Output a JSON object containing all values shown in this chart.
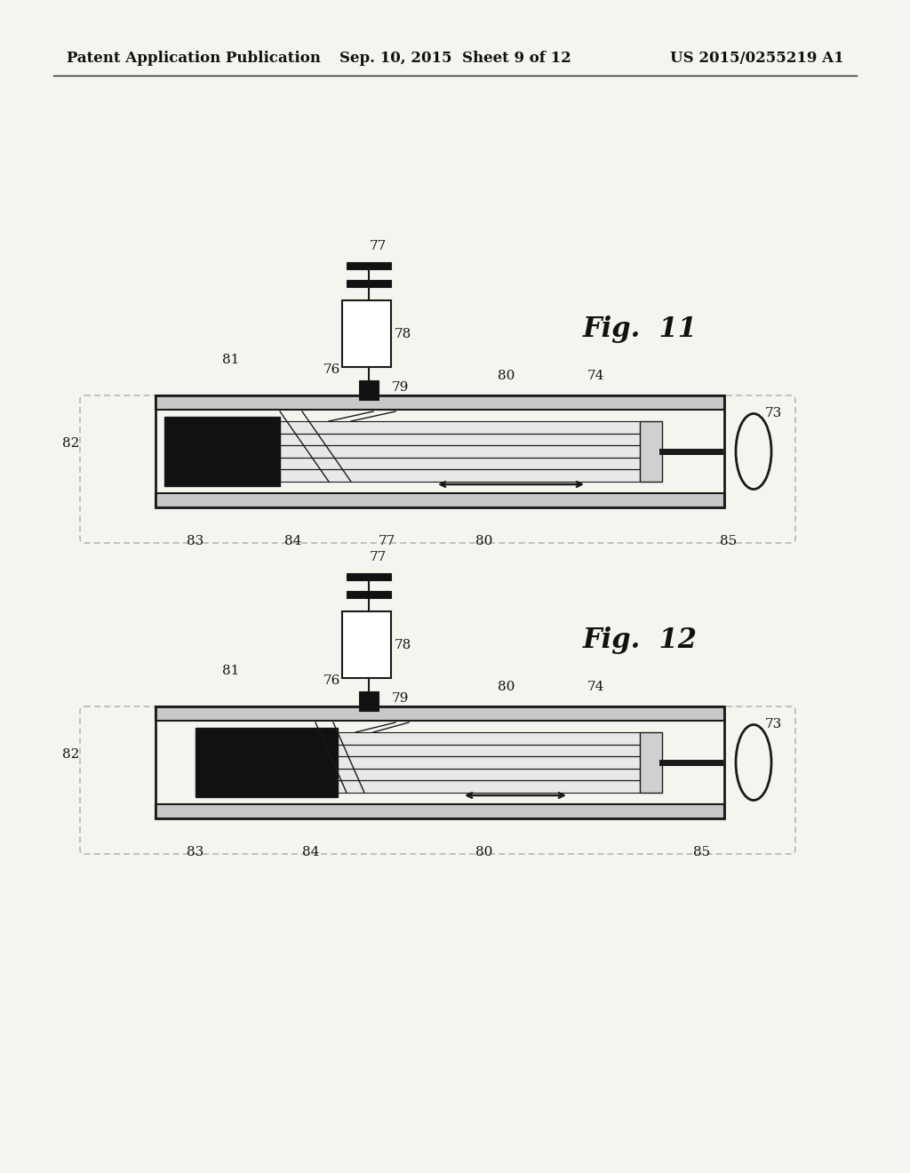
{
  "bg_color": "#f5f5f0",
  "header_left": "Patent Application Publication",
  "header_center": "Sep. 10, 2015  Sheet 9 of 12",
  "header_right": "US 2015/0255219 A1",
  "fig11_label": "Fig.  11",
  "fig12_label": "Fig.  12",
  "line_color": "#1a1a1a",
  "dark_fill": "#111111",
  "gray_fill": "#b0b0b0",
  "light_fill": "#e8e8e8",
  "white_fill": "#ffffff",
  "dotted_color": "#999999"
}
